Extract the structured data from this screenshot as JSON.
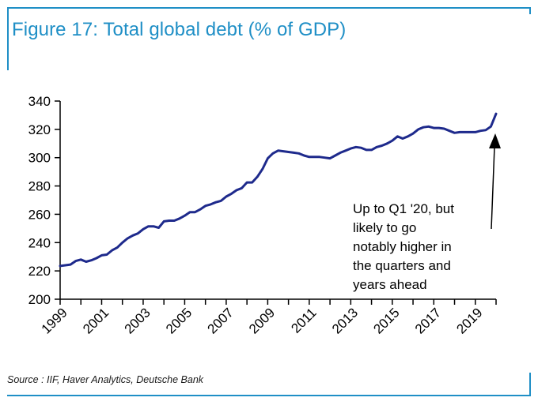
{
  "title": "Figure 17: Total global debt (% of GDP)",
  "source": "Source : IIF, Haver Analytics, Deutsche Bank",
  "colors": {
    "accent": "#1f8fc6",
    "series": "#1e2a8c"
  },
  "chart_data": {
    "type": "line",
    "xlabel": "",
    "ylabel": "",
    "ylim": [
      200,
      340
    ],
    "xlim": [
      1999,
      2020
    ],
    "yticks": [
      "200",
      "220",
      "240",
      "260",
      "280",
      "300",
      "320",
      "340"
    ],
    "xticks": [
      "1999",
      "2001",
      "2003",
      "2005",
      "2007",
      "2009",
      "2011",
      "2013",
      "2015",
      "2017",
      "2019"
    ],
    "grid": false,
    "legend": "none",
    "annotation": {
      "lines": [
        "Up to Q1 '20, but",
        "likely to go",
        "notably higher in",
        "the quarters and",
        "years ahead"
      ]
    },
    "series": [
      {
        "x": [
          1999.0,
          1999.25,
          1999.5,
          1999.75,
          2000.0,
          2000.25,
          2000.5,
          2000.75,
          2001.0,
          2001.25,
          2001.5,
          2001.75,
          2002.0,
          2002.25,
          2002.5,
          2002.75,
          2003.0,
          2003.25,
          2003.5,
          2003.75,
          2004.0,
          2004.25,
          2004.5,
          2004.75,
          2005.0,
          2005.25,
          2005.5,
          2005.75,
          2006.0,
          2006.25,
          2006.5,
          2006.75,
          2007.0,
          2007.25,
          2007.5,
          2007.75,
          2008.0,
          2008.25,
          2008.5,
          2008.75,
          2009.0,
          2009.25,
          2009.5,
          2009.75,
          2010.0,
          2010.25,
          2010.5,
          2010.75,
          2011.0,
          2011.25,
          2011.5,
          2011.75,
          2012.0,
          2012.25,
          2012.5,
          2012.75,
          2013.0,
          2013.25,
          2013.5,
          2013.75,
          2014.0,
          2014.25,
          2014.5,
          2014.75,
          2015.0,
          2015.25,
          2015.5,
          2015.75,
          2016.0,
          2016.25,
          2016.5,
          2016.75,
          2017.0,
          2017.25,
          2017.5,
          2017.75,
          2018.0,
          2018.25,
          2018.5,
          2018.75,
          2019.0,
          2019.25,
          2019.5,
          2019.75,
          2020.0
        ],
        "values": [
          223.5,
          224,
          224.5,
          227,
          228,
          226.5,
          227.5,
          229,
          231,
          231.5,
          234.5,
          236.5,
          240,
          243,
          245,
          246.5,
          249.5,
          251.5,
          251.5,
          250.5,
          255,
          255.5,
          255.5,
          257,
          259,
          261.5,
          261.5,
          263.5,
          266,
          267,
          268.5,
          269.5,
          272.5,
          274.5,
          277,
          278.5,
          282.5,
          282.5,
          286.5,
          292,
          299.5,
          303,
          305,
          304.5,
          304,
          303.5,
          303,
          301.5,
          300.5,
          300.5,
          300.5,
          300,
          299.5,
          301.5,
          303.5,
          305,
          306.5,
          307.5,
          307,
          305.5,
          305.5,
          307.5,
          308.5,
          310,
          312,
          315,
          313.5,
          315,
          317,
          320,
          321.5,
          322,
          321,
          321,
          320.5,
          319,
          317.5,
          318,
          318,
          318,
          318,
          319,
          319.5,
          322,
          331
        ]
      }
    ]
  }
}
